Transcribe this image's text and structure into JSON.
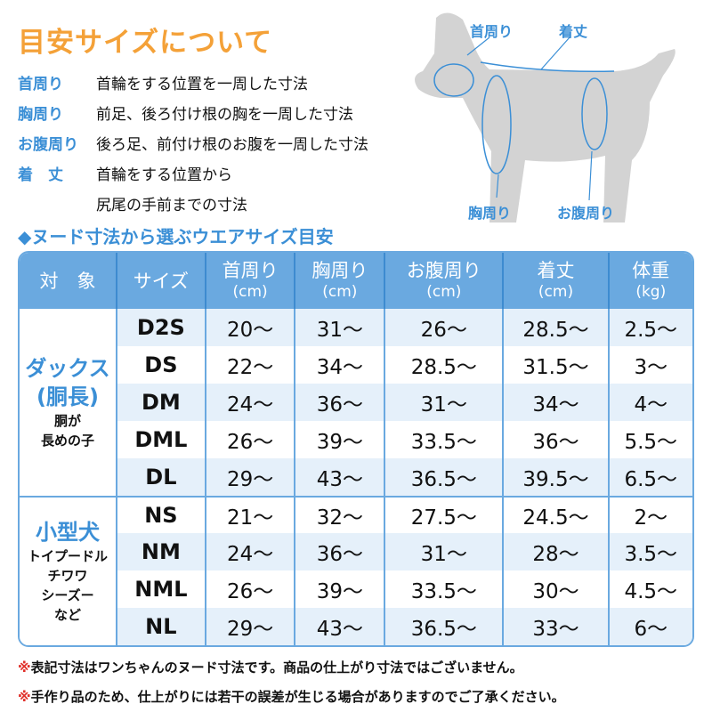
{
  "title": "目安サイズについて",
  "definitions": [
    {
      "term": "首周り",
      "desc": "首輪をする位置を一周した寸法"
    },
    {
      "term": "胸周り",
      "desc": "前足、後ろ付け根の胸を一周した寸法"
    },
    {
      "term": "お腹周り",
      "desc": "後ろ足、前付け根のお腹を一周した寸法"
    },
    {
      "term": "着　丈",
      "desc": "首輪をする位置から",
      "desc2": "尻尾の手前までの寸法"
    }
  ],
  "diagram": {
    "neck": "首周り",
    "length": "着丈",
    "chest": "胸周り",
    "belly": "お腹周り"
  },
  "subtitle": "◆ヌード寸法から選ぶウエアサイズ目安",
  "colors": {
    "title": "#f4a138",
    "accent": "#3b8fd6",
    "header": "#6aa9e0",
    "row_shade": "#e5f0fa",
    "note_mark": "#e0302a"
  },
  "table": {
    "headers": [
      {
        "label": "対　象"
      },
      {
        "label": "サイズ"
      },
      {
        "label": "首周り",
        "unit": "(cm)"
      },
      {
        "label": "胸周り",
        "unit": "(cm)"
      },
      {
        "label": "お腹周り",
        "unit": "(cm)"
      },
      {
        "label": "着丈",
        "unit": "(cm)"
      },
      {
        "label": "体重",
        "unit": "(kg)"
      }
    ],
    "groups": [
      {
        "name": "ダックス",
        "name2": "(胴長)",
        "desc": "胴が",
        "desc2": "長めの子",
        "rows": [
          [
            "D2S",
            "20〜",
            "31〜",
            "26〜",
            "28.5〜",
            "2.5〜"
          ],
          [
            "DS",
            "22〜",
            "34〜",
            "28.5〜",
            "31.5〜",
            "3〜"
          ],
          [
            "DM",
            "24〜",
            "36〜",
            "31〜",
            "34〜",
            "4〜"
          ],
          [
            "DML",
            "26〜",
            "39〜",
            "33.5〜",
            "36〜",
            "5.5〜"
          ],
          [
            "DL",
            "29〜",
            "43〜",
            "36.5〜",
            "39.5〜",
            "6.5〜"
          ]
        ]
      },
      {
        "name": "小型犬",
        "desc": "トイプードル",
        "desc2": "チワワ",
        "desc3": "シーズー",
        "desc4": "など",
        "rows": [
          [
            "NS",
            "21〜",
            "32〜",
            "27.5〜",
            "24.5〜",
            "2〜"
          ],
          [
            "NM",
            "24〜",
            "36〜",
            "31〜",
            "28〜",
            "3.5〜"
          ],
          [
            "NML",
            "26〜",
            "39〜",
            "33.5〜",
            "30〜",
            "4.5〜"
          ],
          [
            "NL",
            "29〜",
            "43〜",
            "36.5〜",
            "33〜",
            "6〜"
          ]
        ]
      }
    ]
  },
  "notes": [
    {
      "mark": "※",
      "text": "表記寸法はワンちゃんのヌード寸法です。商品の仕上がり寸法ではございません。"
    },
    {
      "mark": "※",
      "text": "手作り品のため、仕上がりには若干の誤差が生じる場合がありますのでご了承ください。"
    }
  ]
}
